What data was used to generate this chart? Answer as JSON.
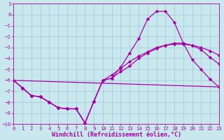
{
  "xlabel": "Windchill (Refroidissement éolien,°C)",
  "xlim": [
    0,
    23
  ],
  "ylim": [
    -10,
    1
  ],
  "yticks": [
    1,
    0,
    -1,
    -2,
    -3,
    -4,
    -5,
    -6,
    -7,
    -8,
    -9,
    -10
  ],
  "xticks": [
    0,
    1,
    2,
    3,
    4,
    5,
    6,
    7,
    8,
    9,
    10,
    11,
    12,
    13,
    14,
    15,
    16,
    17,
    18,
    19,
    20,
    21,
    22,
    23
  ],
  "bg_color": "#c8e8ee",
  "line_color": "#aa00aa",
  "grid_color": "#a0c8d8",
  "lines": [
    {
      "x": [
        0,
        1,
        2,
        3,
        4,
        5,
        6,
        7,
        8,
        9,
        10,
        11,
        12,
        13,
        14,
        15,
        16,
        17,
        18,
        19,
        20,
        21,
        22,
        23
      ],
      "y": [
        -6.0,
        -6.7,
        -7.4,
        -7.5,
        -8.0,
        -8.5,
        -8.6,
        -8.6,
        -9.9,
        -7.9,
        -6.0,
        -5.8,
        -4.8,
        -3.5,
        -2.2,
        -0.4,
        0.3,
        0.3,
        -0.7,
        -2.6,
        -4.1,
        -5.0,
        -5.9,
        -6.6
      ],
      "marker": true
    },
    {
      "x": [
        0,
        1,
        2,
        3,
        4,
        5,
        6,
        7,
        8,
        9,
        10,
        11,
        12,
        13,
        14,
        15,
        16,
        17,
        18,
        19,
        20,
        21,
        22,
        23
      ],
      "y": [
        -6.0,
        -6.7,
        -7.4,
        -7.5,
        -8.0,
        -8.5,
        -8.6,
        -8.6,
        -9.9,
        -7.9,
        -6.0,
        -5.8,
        -5.2,
        -4.7,
        -4.0,
        -3.5,
        -3.1,
        -2.8,
        -2.6,
        -2.6,
        -2.8,
        -3.2,
        -3.9,
        -4.5
      ],
      "marker": true
    },
    {
      "x": [
        0,
        1,
        2,
        3,
        4,
        5,
        6,
        7,
        8,
        9,
        10,
        11,
        12,
        13,
        14,
        15,
        16,
        17,
        18,
        19,
        20,
        21,
        22,
        23
      ],
      "y": [
        -6.0,
        -6.7,
        -7.4,
        -7.5,
        -8.0,
        -8.5,
        -8.6,
        -8.6,
        -9.9,
        -7.9,
        -6.0,
        -5.5,
        -4.9,
        -4.3,
        -3.8,
        -3.4,
        -3.0,
        -2.8,
        -2.7,
        -2.7,
        -2.8,
        -3.0,
        -3.3,
        -3.7
      ],
      "marker": true
    },
    {
      "x": [
        0,
        23
      ],
      "y": [
        -6.0,
        -6.6
      ],
      "marker": false
    }
  ],
  "markersize": 2.5,
  "linewidth": 0.9,
  "tick_fontsize": 5.2,
  "label_fontsize": 6.0,
  "tick_color": "#aa00aa",
  "label_color": "#aa00aa"
}
